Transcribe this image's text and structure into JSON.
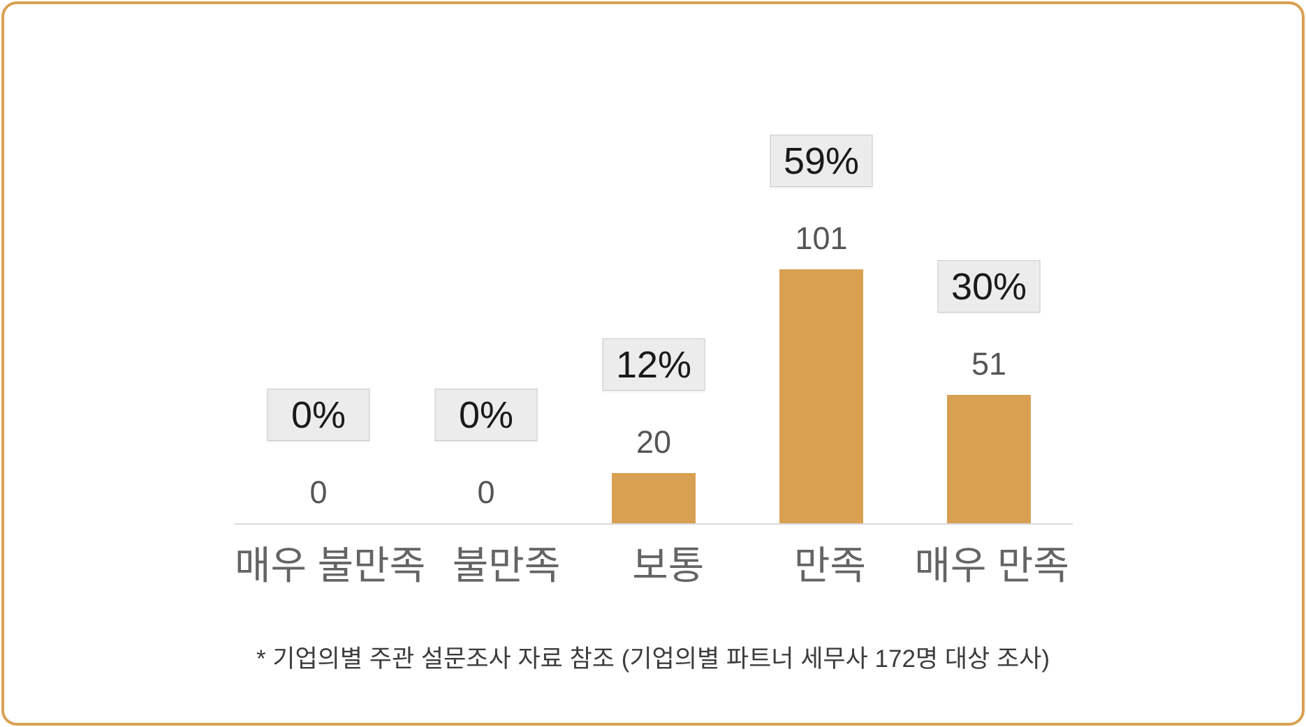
{
  "card": {
    "border_color": "#D9A052",
    "background": "#FFFFFF"
  },
  "chart_data": {
    "type": "bar",
    "categories": [
      "매우 불만족",
      "불만족",
      "보통",
      "만족",
      "매우 만족"
    ],
    "values": [
      0,
      0,
      20,
      101,
      51
    ],
    "value_labels": [
      "0",
      "0",
      "20",
      "101",
      "51"
    ],
    "percent_labels": [
      "0%",
      "0%",
      "12%",
      "59%",
      "30%"
    ],
    "title": "",
    "xlabel": "",
    "ylabel": "",
    "ylim": [
      0,
      170
    ],
    "grid": false,
    "legend": "none",
    "bar_color": "#D9A052",
    "axis_color": "#D9D9D9",
    "badge_bg": "#ECECEC",
    "badge_border": "#C9C9C9",
    "badge_text_color": "#1A1A1A",
    "value_label_color": "#555555",
    "category_label_color": "#646464"
  },
  "footnote": {
    "text": "* 기업의별 주관 설문조사 자료 참조 (기업의별 파트너 세무사 172명 대상 조사)",
    "color": "#3C3C3C"
  }
}
